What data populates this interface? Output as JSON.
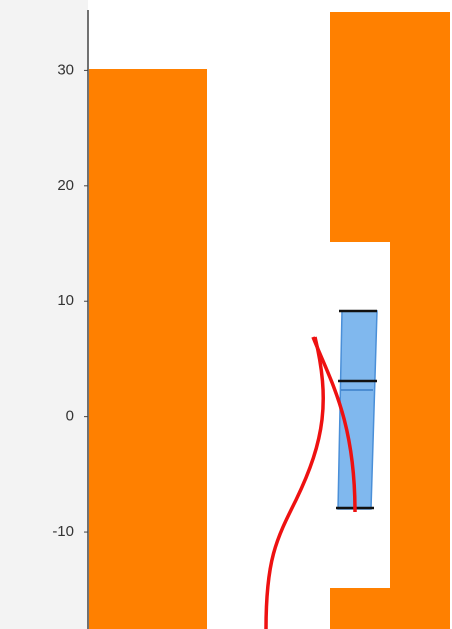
{
  "chart_data": {
    "type": "scene",
    "ylim": [
      -18.4,
      36.1
    ],
    "yticks": [
      30,
      20,
      10,
      0,
      -10
    ]
  }
}
